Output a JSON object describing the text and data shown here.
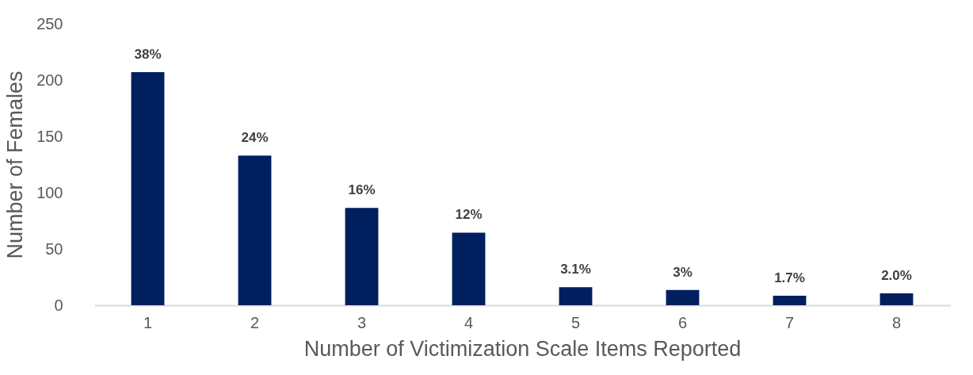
{
  "chart_data": {
    "type": "bar",
    "xlabel": "Number of Victimization Scale Items Reported",
    "ylabel": "Number of Females",
    "categories": [
      "1",
      "2",
      "3",
      "4",
      "5",
      "6",
      "7",
      "8"
    ],
    "values": [
      207,
      133,
      86.5,
      64.5,
      16,
      13.5,
      8.5,
      10.5
    ],
    "annotations": [
      {
        "text": "38%",
        "x": "1",
        "y": 207
      },
      {
        "text": "24%",
        "x": "2",
        "y": 133
      },
      {
        "text": "16%",
        "x": "3",
        "y": 86.5
      },
      {
        "text": "12%",
        "x": "4",
        "y": 64.5
      },
      {
        "text": "3.1%",
        "x": "5",
        "y": 16
      },
      {
        "text": "3%",
        "x": "6",
        "y": 13.5
      },
      {
        "text": "1.7%",
        "x": "7",
        "y": 8.5
      },
      {
        "text": "2.0%",
        "x": "8",
        "y": 10.5
      }
    ],
    "color": "#001f5f",
    "ylim": [
      0,
      250
    ],
    "yticks": [
      0,
      50,
      100,
      150,
      200,
      250
    ],
    "grid": false
  }
}
